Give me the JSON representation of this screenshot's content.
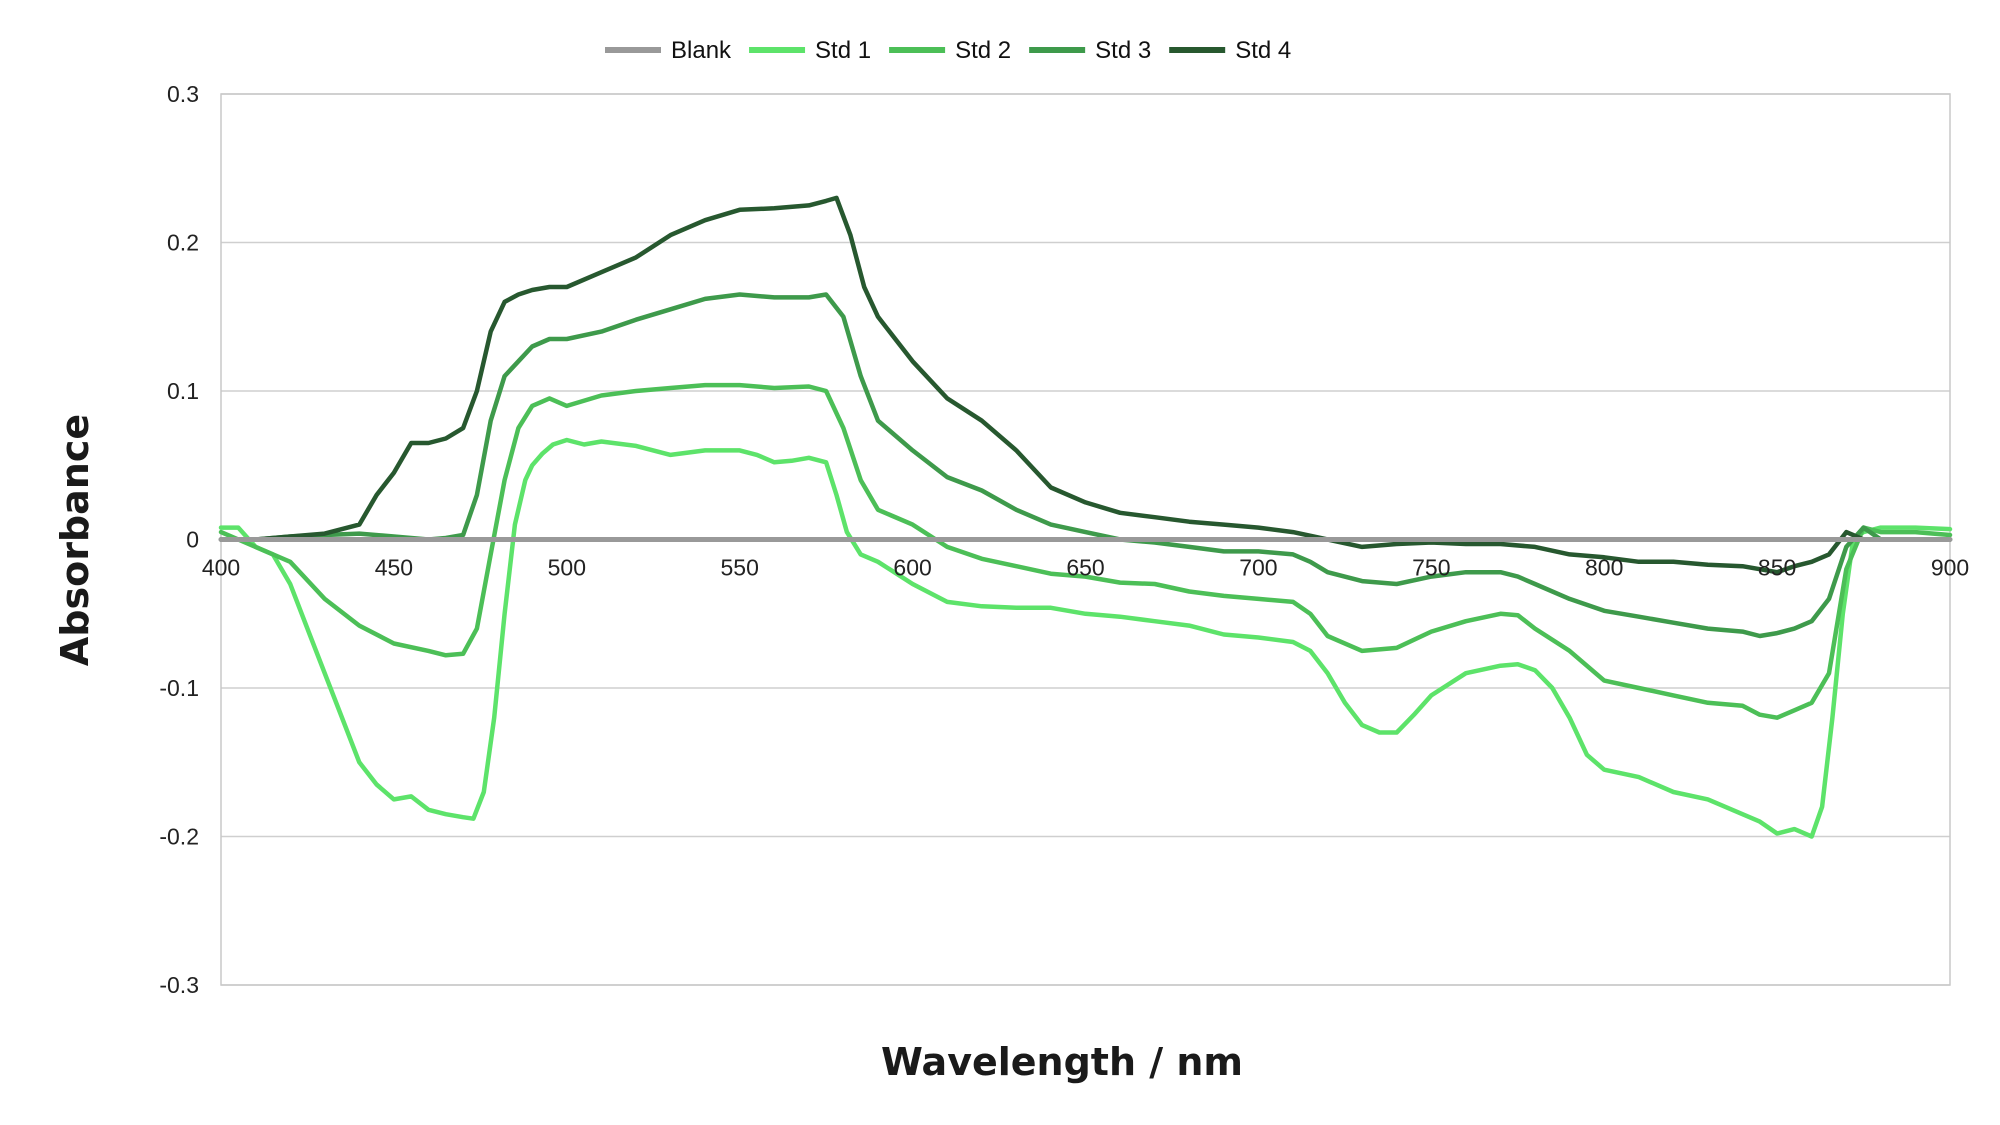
{
  "chart_data": {
    "type": "line",
    "title": "",
    "xlabel": "Wavelength / nm",
    "ylabel": "Absorbance",
    "xlim": [
      400,
      900
    ],
    "ylim": [
      -0.3,
      0.3
    ],
    "x_ticks": [
      "400",
      "450",
      "500",
      "550",
      "600",
      "650",
      "700",
      "750",
      "800",
      "850",
      "900"
    ],
    "y_ticks": [
      "0.3",
      "0.2",
      "0.1",
      "0",
      "-0.1",
      "-0.2",
      "-0.3"
    ],
    "grid": "horizontal",
    "legend_position": "top",
    "series": [
      {
        "name": "Blank",
        "color": "#999999",
        "x": [
          400,
          900
        ],
        "y": [
          0.0,
          0.0
        ]
      },
      {
        "name": "Std 1",
        "color": "#5de36a",
        "x": [
          400,
          405,
          410,
          415,
          420,
          425,
          430,
          435,
          440,
          445,
          450,
          455,
          460,
          465,
          470,
          473,
          476,
          479,
          482,
          485,
          488,
          490,
          493,
          496,
          500,
          505,
          510,
          520,
          530,
          540,
          550,
          555,
          560,
          565,
          570,
          575,
          578,
          581,
          585,
          590,
          600,
          610,
          620,
          630,
          640,
          650,
          660,
          670,
          680,
          690,
          700,
          710,
          715,
          720,
          725,
          730,
          735,
          740,
          745,
          750,
          760,
          770,
          775,
          780,
          785,
          790,
          795,
          800,
          810,
          820,
          830,
          840,
          845,
          850,
          855,
          860,
          863,
          866,
          869,
          872,
          875,
          880,
          890,
          900
        ],
        "y": [
          0.008,
          0.008,
          -0.005,
          -0.01,
          -0.03,
          -0.06,
          -0.09,
          -0.12,
          -0.15,
          -0.165,
          -0.175,
          -0.173,
          -0.182,
          -0.185,
          -0.187,
          -0.188,
          -0.17,
          -0.12,
          -0.05,
          0.01,
          0.04,
          0.05,
          0.058,
          0.064,
          0.067,
          0.064,
          0.066,
          0.063,
          0.057,
          0.06,
          0.06,
          0.057,
          0.052,
          0.053,
          0.055,
          0.052,
          0.03,
          0.005,
          -0.01,
          -0.015,
          -0.03,
          -0.042,
          -0.045,
          -0.046,
          -0.046,
          -0.05,
          -0.052,
          -0.055,
          -0.058,
          -0.064,
          -0.066,
          -0.069,
          -0.075,
          -0.09,
          -0.11,
          -0.125,
          -0.13,
          -0.13,
          -0.118,
          -0.105,
          -0.09,
          -0.085,
          -0.084,
          -0.088,
          -0.1,
          -0.12,
          -0.145,
          -0.155,
          -0.16,
          -0.17,
          -0.175,
          -0.185,
          -0.19,
          -0.198,
          -0.195,
          -0.2,
          -0.18,
          -0.12,
          -0.05,
          0.0,
          0.005,
          0.008,
          0.008,
          0.007
        ]
      },
      {
        "name": "Std 2",
        "color": "#4cbf57",
        "x": [
          400,
          410,
          420,
          430,
          440,
          450,
          460,
          465,
          470,
          474,
          478,
          482,
          486,
          490,
          495,
          500,
          510,
          520,
          530,
          540,
          550,
          560,
          570,
          575,
          580,
          585,
          590,
          600,
          610,
          620,
          630,
          640,
          650,
          660,
          670,
          680,
          690,
          700,
          710,
          715,
          720,
          730,
          740,
          750,
          760,
          770,
          775,
          780,
          790,
          800,
          810,
          820,
          830,
          840,
          845,
          850,
          855,
          860,
          865,
          870,
          875,
          880,
          890,
          900
        ],
        "y": [
          0.005,
          -0.005,
          -0.015,
          -0.04,
          -0.058,
          -0.07,
          -0.075,
          -0.078,
          -0.077,
          -0.06,
          -0.01,
          0.04,
          0.075,
          0.09,
          0.095,
          0.09,
          0.097,
          0.1,
          0.102,
          0.104,
          0.104,
          0.102,
          0.103,
          0.1,
          0.075,
          0.04,
          0.02,
          0.01,
          -0.005,
          -0.013,
          -0.018,
          -0.023,
          -0.025,
          -0.029,
          -0.03,
          -0.035,
          -0.038,
          -0.04,
          -0.042,
          -0.05,
          -0.065,
          -0.075,
          -0.073,
          -0.062,
          -0.055,
          -0.05,
          -0.051,
          -0.06,
          -0.075,
          -0.095,
          -0.1,
          -0.105,
          -0.11,
          -0.112,
          -0.118,
          -0.12,
          -0.115,
          -0.11,
          -0.09,
          -0.02,
          0.008,
          0.005,
          0.005,
          0.003
        ]
      },
      {
        "name": "Std 3",
        "color": "#3e9a4b",
        "x": [
          400,
          410,
          420,
          430,
          440,
          450,
          455,
          460,
          465,
          470,
          474,
          478,
          482,
          486,
          490,
          495,
          500,
          510,
          520,
          530,
          540,
          550,
          560,
          570,
          575,
          580,
          585,
          590,
          600,
          610,
          620,
          630,
          640,
          650,
          660,
          670,
          680,
          690,
          700,
          710,
          715,
          720,
          730,
          740,
          750,
          760,
          770,
          775,
          780,
          790,
          800,
          810,
          820,
          830,
          840,
          845,
          850,
          855,
          860,
          865,
          870,
          875,
          880,
          890,
          900
        ],
        "y": [
          0.0,
          0.0,
          0.002,
          0.003,
          0.004,
          0.002,
          0.001,
          0.0,
          0.001,
          0.003,
          0.03,
          0.08,
          0.11,
          0.12,
          0.13,
          0.135,
          0.135,
          0.14,
          0.148,
          0.155,
          0.162,
          0.165,
          0.163,
          0.163,
          0.165,
          0.15,
          0.11,
          0.08,
          0.06,
          0.042,
          0.033,
          0.02,
          0.01,
          0.005,
          0.0,
          -0.002,
          -0.005,
          -0.008,
          -0.008,
          -0.01,
          -0.015,
          -0.022,
          -0.028,
          -0.03,
          -0.025,
          -0.022,
          -0.022,
          -0.025,
          -0.03,
          -0.04,
          -0.048,
          -0.052,
          -0.056,
          -0.06,
          -0.062,
          -0.065,
          -0.063,
          -0.06,
          -0.055,
          -0.04,
          -0.005,
          0.008,
          0.0,
          0.0,
          0.0
        ]
      },
      {
        "name": "Std 4",
        "color": "#27582f",
        "x": [
          400,
          410,
          420,
          430,
          440,
          445,
          450,
          455,
          460,
          465,
          470,
          474,
          478,
          482,
          486,
          490,
          495,
          500,
          510,
          520,
          530,
          540,
          550,
          560,
          570,
          575,
          578,
          582,
          586,
          590,
          600,
          610,
          620,
          630,
          640,
          650,
          660,
          670,
          680,
          690,
          700,
          710,
          720,
          730,
          740,
          750,
          760,
          770,
          780,
          790,
          800,
          810,
          820,
          830,
          840,
          845,
          850,
          855,
          860,
          865,
          870,
          875,
          880,
          890,
          900
        ],
        "y": [
          0.0,
          0.0,
          0.002,
          0.004,
          0.01,
          0.03,
          0.045,
          0.065,
          0.065,
          0.068,
          0.075,
          0.1,
          0.14,
          0.16,
          0.165,
          0.168,
          0.17,
          0.17,
          0.18,
          0.19,
          0.205,
          0.215,
          0.222,
          0.223,
          0.225,
          0.228,
          0.23,
          0.205,
          0.17,
          0.15,
          0.12,
          0.095,
          0.08,
          0.06,
          0.035,
          0.025,
          0.018,
          0.015,
          0.012,
          0.01,
          0.008,
          0.005,
          0.0,
          -0.005,
          -0.003,
          -0.002,
          -0.003,
          -0.003,
          -0.005,
          -0.01,
          -0.012,
          -0.015,
          -0.015,
          -0.017,
          -0.018,
          -0.02,
          -0.022,
          -0.018,
          -0.015,
          -0.01,
          0.005,
          0.0,
          0.0,
          0.0,
          0.0
        ]
      }
    ]
  }
}
